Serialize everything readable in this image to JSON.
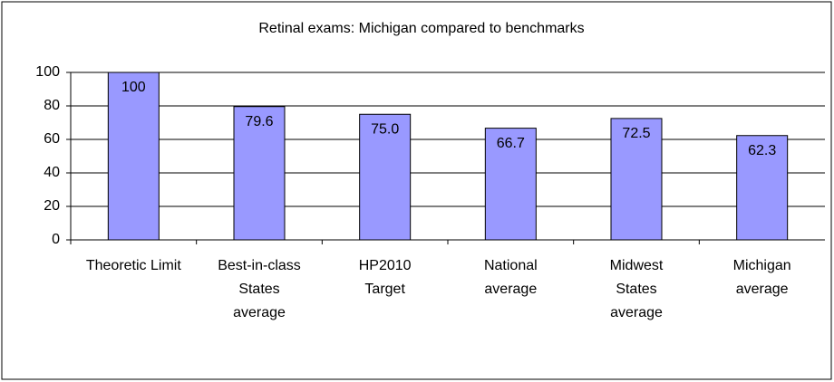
{
  "chart_data": {
    "type": "bar",
    "title": "Retinal exams: Michigan compared to benchmarks",
    "categories": [
      "Theoretic Limit",
      "Best-in-class States average",
      "HP2010 Target",
      "National average",
      "Midwest States average",
      "Michigan average"
    ],
    "values": [
      100,
      79.6,
      75,
      66.7,
      72.5,
      62.3
    ],
    "value_labels": [
      "100",
      "79.6",
      "75.0",
      "66.7",
      "72.5",
      "62.3"
    ],
    "color": "#9999ff",
    "ylim": [
      0,
      100
    ],
    "yticks": [
      0,
      20,
      40,
      60,
      80,
      100
    ],
    "grid": true
  }
}
